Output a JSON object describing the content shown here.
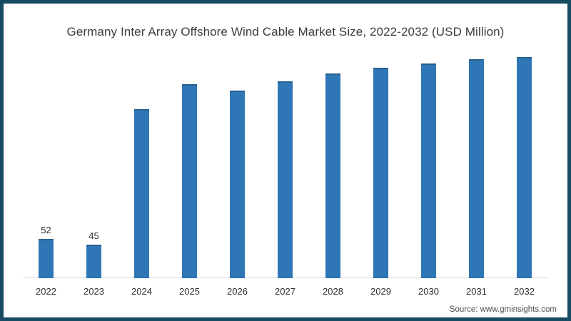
{
  "frame": {
    "border_color": "#174a63",
    "background_color": "#ffffff"
  },
  "chart_data": {
    "type": "bar",
    "title": "Germany Inter Array Offshore Wind Cable Market Size, 2022-2032 (USD Million)",
    "categories": [
      "2022",
      "2023",
      "2024",
      "2025",
      "2026",
      "2027",
      "2028",
      "2029",
      "2030",
      "2031",
      "2032"
    ],
    "values": [
      52,
      45,
      226,
      259,
      250,
      263,
      273,
      281,
      287,
      292,
      295
    ],
    "value_labels": [
      "52",
      "45",
      null,
      null,
      null,
      null,
      null,
      null,
      null,
      null,
      null
    ],
    "xlabel": "",
    "ylabel": "",
    "ylim": [
      0,
      320
    ],
    "grid": false,
    "legend": false,
    "bar_color": "#2e76b6",
    "bar_top_edge_color": "#27608f",
    "axis_line_color": "#d9d9d9"
  },
  "source": {
    "text": "Source: www.gminsights.com"
  }
}
